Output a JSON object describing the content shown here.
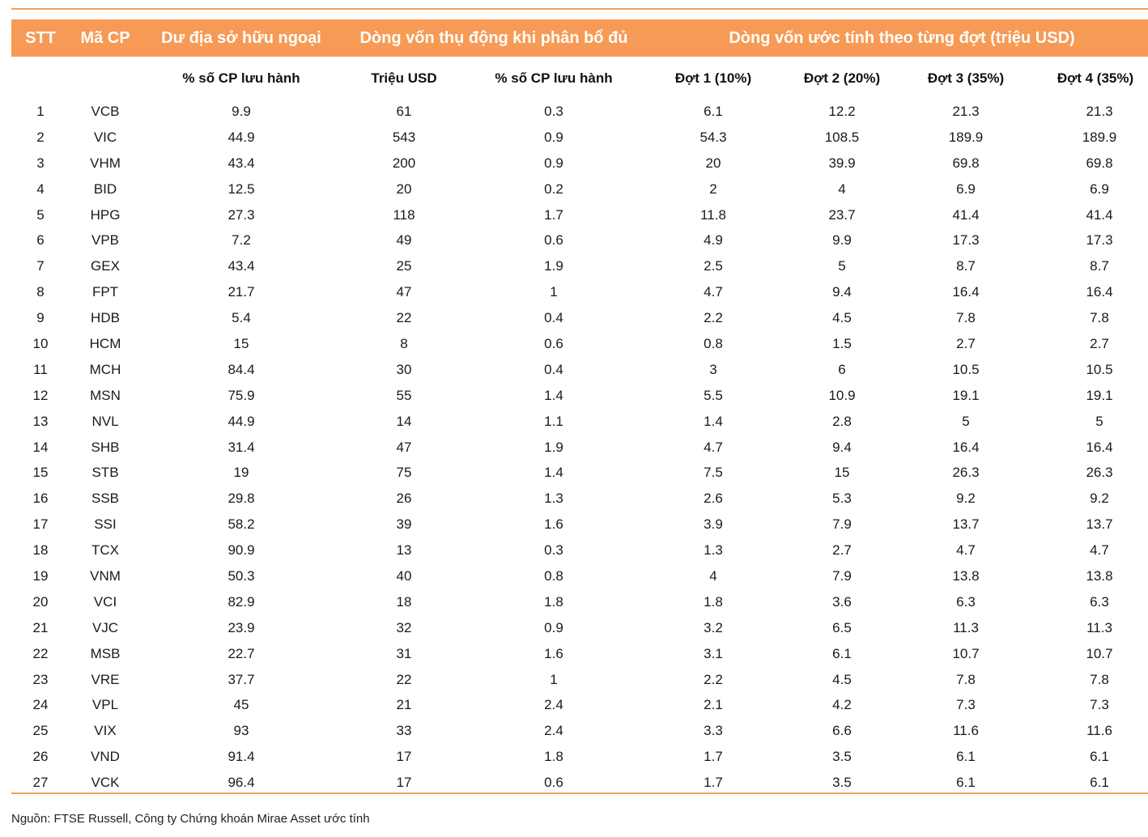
{
  "header": {
    "stt": "STT",
    "ma_cp": "Mã CP",
    "du_dia": "Dư địa sở hữu ngoại",
    "dong_von_thu_dong": "Dòng vốn thụ động khi phân bổ đủ",
    "dong_von_uoc_tinh": "Dòng vốn ước tính theo từng đợt (triệu USD)"
  },
  "subheader": {
    "pct_outstanding_1": "% số CP lưu hành",
    "trieu_usd": "Triệu USD",
    "pct_outstanding_2": "% số CP lưu hành",
    "dot1": "Đợt 1 (10%)",
    "dot2": "Đợt 2 (20%)",
    "dot3": "Đợt 3 (35%)",
    "dot4": "Đợt 4 (35%)"
  },
  "rows": [
    {
      "stt": "1",
      "ticker": "VCB",
      "room": "9.9",
      "usd": "61",
      "pct": "0.3",
      "d1": "6.1",
      "d2": "12.2",
      "d3": "21.3",
      "d4": "21.3"
    },
    {
      "stt": "2",
      "ticker": "VIC",
      "room": "44.9",
      "usd": "543",
      "pct": "0.9",
      "d1": "54.3",
      "d2": "108.5",
      "d3": "189.9",
      "d4": "189.9"
    },
    {
      "stt": "3",
      "ticker": "VHM",
      "room": "43.4",
      "usd": "200",
      "pct": "0.9",
      "d1": "20",
      "d2": "39.9",
      "d3": "69.8",
      "d4": "69.8"
    },
    {
      "stt": "4",
      "ticker": "BID",
      "room": "12.5",
      "usd": "20",
      "pct": "0.2",
      "d1": "2",
      "d2": "4",
      "d3": "6.9",
      "d4": "6.9"
    },
    {
      "stt": "5",
      "ticker": "HPG",
      "room": "27.3",
      "usd": "118",
      "pct": "1.7",
      "d1": "11.8",
      "d2": "23.7",
      "d3": "41.4",
      "d4": "41.4"
    },
    {
      "stt": "6",
      "ticker": "VPB",
      "room": "7.2",
      "usd": "49",
      "pct": "0.6",
      "d1": "4.9",
      "d2": "9.9",
      "d3": "17.3",
      "d4": "17.3"
    },
    {
      "stt": "7",
      "ticker": "GEX",
      "room": "43.4",
      "usd": "25",
      "pct": "1.9",
      "d1": "2.5",
      "d2": "5",
      "d3": "8.7",
      "d4": "8.7"
    },
    {
      "stt": "8",
      "ticker": "FPT",
      "room": "21.7",
      "usd": "47",
      "pct": "1",
      "d1": "4.7",
      "d2": "9.4",
      "d3": "16.4",
      "d4": "16.4"
    },
    {
      "stt": "9",
      "ticker": "HDB",
      "room": "5.4",
      "usd": "22",
      "pct": "0.4",
      "d1": "2.2",
      "d2": "4.5",
      "d3": "7.8",
      "d4": "7.8"
    },
    {
      "stt": "10",
      "ticker": "HCM",
      "room": "15",
      "usd": "8",
      "pct": "0.6",
      "d1": "0.8",
      "d2": "1.5",
      "d3": "2.7",
      "d4": "2.7"
    },
    {
      "stt": "11",
      "ticker": "MCH",
      "room": "84.4",
      "usd": "30",
      "pct": "0.4",
      "d1": "3",
      "d2": "6",
      "d3": "10.5",
      "d4": "10.5"
    },
    {
      "stt": "12",
      "ticker": "MSN",
      "room": "75.9",
      "usd": "55",
      "pct": "1.4",
      "d1": "5.5",
      "d2": "10.9",
      "d3": "19.1",
      "d4": "19.1"
    },
    {
      "stt": "13",
      "ticker": "NVL",
      "room": "44.9",
      "usd": "14",
      "pct": "1.1",
      "d1": "1.4",
      "d2": "2.8",
      "d3": "5",
      "d4": "5"
    },
    {
      "stt": "14",
      "ticker": "SHB",
      "room": "31.4",
      "usd": "47",
      "pct": "1.9",
      "d1": "4.7",
      "d2": "9.4",
      "d3": "16.4",
      "d4": "16.4"
    },
    {
      "stt": "15",
      "ticker": "STB",
      "room": "19",
      "usd": "75",
      "pct": "1.4",
      "d1": "7.5",
      "d2": "15",
      "d3": "26.3",
      "d4": "26.3"
    },
    {
      "stt": "16",
      "ticker": "SSB",
      "room": "29.8",
      "usd": "26",
      "pct": "1.3",
      "d1": "2.6",
      "d2": "5.3",
      "d3": "9.2",
      "d4": "9.2"
    },
    {
      "stt": "17",
      "ticker": "SSI",
      "room": "58.2",
      "usd": "39",
      "pct": "1.6",
      "d1": "3.9",
      "d2": "7.9",
      "d3": "13.7",
      "d4": "13.7"
    },
    {
      "stt": "18",
      "ticker": "TCX",
      "room": "90.9",
      "usd": "13",
      "pct": "0.3",
      "d1": "1.3",
      "d2": "2.7",
      "d3": "4.7",
      "d4": "4.7"
    },
    {
      "stt": "19",
      "ticker": "VNM",
      "room": "50.3",
      "usd": "40",
      "pct": "0.8",
      "d1": "4",
      "d2": "7.9",
      "d3": "13.8",
      "d4": "13.8"
    },
    {
      "stt": "20",
      "ticker": "VCI",
      "room": "82.9",
      "usd": "18",
      "pct": "1.8",
      "d1": "1.8",
      "d2": "3.6",
      "d3": "6.3",
      "d4": "6.3"
    },
    {
      "stt": "21",
      "ticker": "VJC",
      "room": "23.9",
      "usd": "32",
      "pct": "0.9",
      "d1": "3.2",
      "d2": "6.5",
      "d3": "11.3",
      "d4": "11.3"
    },
    {
      "stt": "22",
      "ticker": "MSB",
      "room": "22.7",
      "usd": "31",
      "pct": "1.6",
      "d1": "3.1",
      "d2": "6.1",
      "d3": "10.7",
      "d4": "10.7"
    },
    {
      "stt": "23",
      "ticker": "VRE",
      "room": "37.7",
      "usd": "22",
      "pct": "1",
      "d1": "2.2",
      "d2": "4.5",
      "d3": "7.8",
      "d4": "7.8"
    },
    {
      "stt": "24",
      "ticker": "VPL",
      "room": "45",
      "usd": "21",
      "pct": "2.4",
      "d1": "2.1",
      "d2": "4.2",
      "d3": "7.3",
      "d4": "7.3"
    },
    {
      "stt": "25",
      "ticker": "VIX",
      "room": "93",
      "usd": "33",
      "pct": "2.4",
      "d1": "3.3",
      "d2": "6.6",
      "d3": "11.6",
      "d4": "11.6"
    },
    {
      "stt": "26",
      "ticker": "VND",
      "room": "91.4",
      "usd": "17",
      "pct": "1.8",
      "d1": "1.7",
      "d2": "3.5",
      "d3": "6.1",
      "d4": "6.1"
    },
    {
      "stt": "27",
      "ticker": "VCK",
      "room": "96.4",
      "usd": "17",
      "pct": "0.6",
      "d1": "1.7",
      "d2": "3.5",
      "d3": "6.1",
      "d4": "6.1"
    }
  ],
  "source": "Nguồn: FTSE Russell, Công ty Chứng khoán Mirae Asset ước tính",
  "colors": {
    "header_bg": "#f79a55",
    "rule": "#f4a05a"
  }
}
